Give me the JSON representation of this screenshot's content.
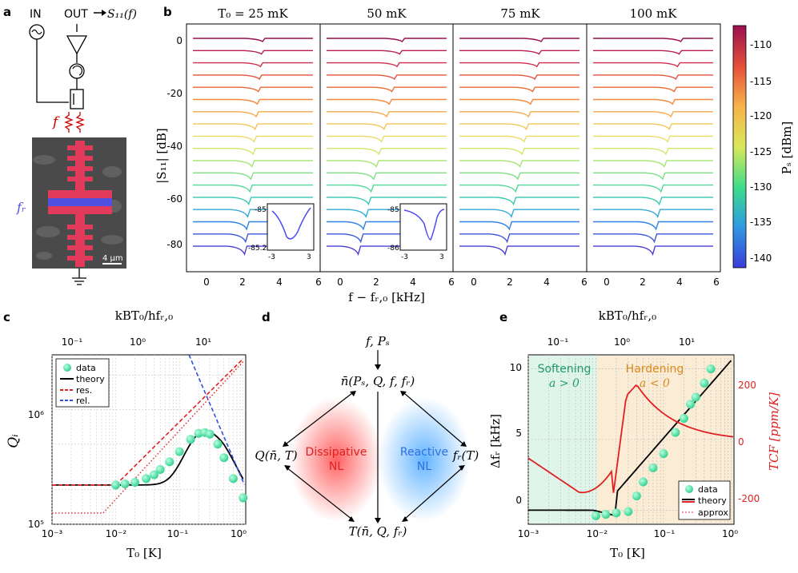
{
  "panels": {
    "a": {
      "label": "a",
      "in_label": "IN",
      "out_label": "OUT",
      "out_signal": "S₁₁(f)",
      "f_label": "f",
      "fr_label": "fᵣ",
      "scalebar": "4 μm"
    },
    "b": {
      "label": "b",
      "titles": [
        "T₀ = 25 mK",
        "50 mK",
        "75 mK",
        "100 mK"
      ],
      "ylabel": "|S₁₁| [dB]",
      "xlabel": "f − fᵣ,₀ [kHz]",
      "yticks": [
        "0",
        "-20",
        "-40",
        "-60",
        "-80"
      ],
      "xticks": [
        "0",
        "2",
        "4",
        "6"
      ],
      "cbar_label": "Pₛ [dBm]",
      "cbar_ticks": [
        "-110",
        "-115",
        "-120",
        "-125",
        "-130",
        "-135",
        "-140"
      ],
      "inset1": {
        "ytop": "-85",
        "ybot": "-85.2",
        "xl": "-3",
        "xr": "3"
      },
      "inset2": {
        "ytop": "-85",
        "ybot": "-86",
        "xl": "-3",
        "xr": "3"
      }
    },
    "c": {
      "label": "c",
      "top_label": "kBT₀/hfᵣ,₀",
      "top_ticks": [
        "10⁻¹",
        "10⁰",
        "10¹"
      ],
      "xlabel": "T₀ [K]",
      "ylabel": "Qᵢ",
      "xticks": [
        "10⁻³",
        "10⁻²",
        "10⁻¹",
        "10⁰"
      ],
      "yticks": [
        "10⁵",
        "10⁶"
      ],
      "legend": [
        "data",
        "theory",
        "res.",
        "rel."
      ]
    },
    "d": {
      "label": "d",
      "top": "f, Pₛ",
      "center": "n̄(Pₛ, Q, f, fᵣ)",
      "left": "Q(n̄, T)",
      "right": "fᵣ(T)",
      "bottom": "T(n̄, Q, fᵣ)",
      "dissipative": [
        "Dissipative",
        "NL"
      ],
      "reactive": [
        "Reactive",
        "NL"
      ]
    },
    "e": {
      "label": "e",
      "top_label": "kBT₀/hfᵣ,₀",
      "top_ticks": [
        "10⁻¹",
        "10⁰",
        "10¹"
      ],
      "xlabel": "T₀ [K]",
      "ylabel": "Δfᵣ [kHz]",
      "ylabel2": "TCF [ppm/K]",
      "xticks": [
        "10⁻³",
        "10⁻²",
        "10⁻¹",
        "10⁰"
      ],
      "yticks": [
        "0",
        "5",
        "10"
      ],
      "yticks2": [
        "200",
        "0",
        "-200"
      ],
      "softening": [
        "Softening",
        "a > 0"
      ],
      "hardening": [
        "Hardening",
        "a < 0"
      ],
      "legend": [
        "data",
        "theory",
        "approx"
      ]
    }
  },
  "chart_data": [
    {
      "type": "line",
      "panel": "c",
      "xlabel": "T₀ [K]",
      "ylabel": "Qᵢ",
      "xscale": "log",
      "yscale": "log",
      "xlim": [
        0.001,
        1.1
      ],
      "ylim": [
        100000,
        3000000
      ],
      "series": [
        {
          "name": "data",
          "x": [
            0.01,
            0.014,
            0.02,
            0.03,
            0.04,
            0.05,
            0.07,
            0.1,
            0.15,
            0.2,
            0.25,
            0.3,
            0.4,
            0.5,
            0.7,
            1.0
          ],
          "values": [
            220000,
            225000,
            232000,
            250000,
            270000,
            300000,
            350000,
            430000,
            550000,
            620000,
            630000,
            610000,
            500000,
            380000,
            250000,
            170000
          ]
        }
      ]
    },
    {
      "type": "line",
      "panel": "e",
      "xlabel": "T₀ [K]",
      "ylabel": "Δfᵣ [kHz]",
      "xscale": "log",
      "xlim": [
        0.001,
        1.1
      ],
      "ylim": [
        -1,
        11
      ],
      "series": [
        {
          "name": "data",
          "x": [
            0.01,
            0.014,
            0.02,
            0.03,
            0.04,
            0.05,
            0.07,
            0.1,
            0.15,
            0.2,
            0.25,
            0.3,
            0.4,
            0.5
          ],
          "values": [
            -0.4,
            -0.3,
            -0.2,
            -0.1,
            1.0,
            2.0,
            3.0,
            4.0,
            5.5,
            6.5,
            7.5,
            8.0,
            9.0,
            10.0
          ]
        }
      ]
    }
  ]
}
